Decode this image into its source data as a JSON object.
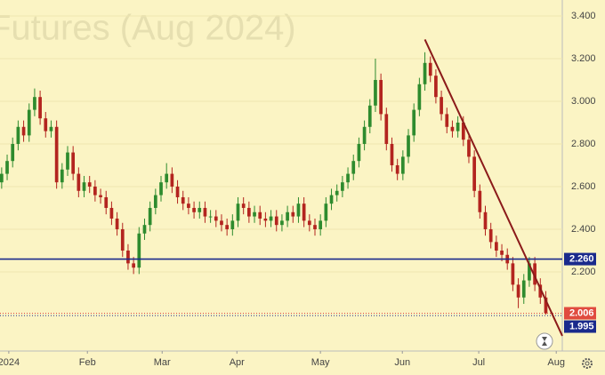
{
  "chart_data": {
    "type": "candlestick",
    "watermark": "Futures (Aug 2024)",
    "xlim": [
      -0.3,
      102
    ],
    "xticks": [
      {
        "value": 1.3,
        "label": "2024"
      },
      {
        "value": 15.6,
        "label": "Feb"
      },
      {
        "value": 29.2,
        "label": "Mar"
      },
      {
        "value": 42.8,
        "label": "Apr"
      },
      {
        "value": 58,
        "label": "May"
      },
      {
        "value": 72.9,
        "label": "Jun"
      },
      {
        "value": 86.8,
        "label": "Jul"
      },
      {
        "value": 100.9,
        "label": "Aug"
      }
    ],
    "ylim": [
      1.829,
      3.475
    ],
    "yticks": [
      {
        "value": 2.2,
        "label": "2.200"
      },
      {
        "value": 2.4,
        "label": "2.400"
      },
      {
        "value": 2.6,
        "label": "2.600"
      },
      {
        "value": 2.8,
        "label": "2.800"
      },
      {
        "value": 3.0,
        "label": "3.000"
      },
      {
        "value": 3.2,
        "label": "3.200"
      },
      {
        "value": 3.4,
        "label": "3.400"
      }
    ],
    "grid": true,
    "up_color": "#2e8b2e",
    "down_color": "#b3241f",
    "ohlc": [
      [
        2.62,
        2.69,
        2.59,
        2.66
      ],
      [
        2.66,
        2.75,
        2.63,
        2.72
      ],
      [
        2.72,
        2.83,
        2.69,
        2.8
      ],
      [
        2.8,
        2.91,
        2.77,
        2.88
      ],
      [
        2.88,
        2.91,
        2.81,
        2.84
      ],
      [
        2.84,
        2.99,
        2.81,
        2.96
      ],
      [
        2.96,
        3.06,
        2.93,
        3.02
      ],
      [
        3.02,
        3.05,
        2.89,
        2.92
      ],
      [
        2.92,
        2.95,
        2.83,
        2.86
      ],
      [
        2.86,
        2.91,
        2.83,
        2.88
      ],
      [
        2.88,
        2.91,
        2.59,
        2.62
      ],
      [
        2.62,
        2.71,
        2.59,
        2.68
      ],
      [
        2.68,
        2.79,
        2.65,
        2.76
      ],
      [
        2.76,
        2.79,
        2.63,
        2.66
      ],
      [
        2.66,
        2.69,
        2.55,
        2.58
      ],
      [
        2.58,
        2.65,
        2.55,
        2.62
      ],
      [
        2.62,
        2.65,
        2.57,
        2.6
      ],
      [
        2.6,
        2.63,
        2.53,
        2.56
      ],
      [
        2.56,
        2.59,
        2.52,
        2.55
      ],
      [
        2.55,
        2.58,
        2.47,
        2.5
      ],
      [
        2.5,
        2.53,
        2.42,
        2.45
      ],
      [
        2.45,
        2.48,
        2.37,
        2.4
      ],
      [
        2.4,
        2.43,
        2.27,
        2.3
      ],
      [
        2.3,
        2.33,
        2.21,
        2.24
      ],
      [
        2.24,
        2.27,
        2.19,
        2.22
      ],
      [
        2.22,
        2.41,
        2.19,
        2.38
      ],
      [
        2.38,
        2.45,
        2.35,
        2.42
      ],
      [
        2.42,
        2.53,
        2.39,
        2.5
      ],
      [
        2.5,
        2.59,
        2.47,
        2.56
      ],
      [
        2.56,
        2.65,
        2.53,
        2.62
      ],
      [
        2.62,
        2.71,
        2.59,
        2.66
      ],
      [
        2.66,
        2.69,
        2.57,
        2.6
      ],
      [
        2.6,
        2.63,
        2.52,
        2.55
      ],
      [
        2.55,
        2.58,
        2.49,
        2.52
      ],
      [
        2.52,
        2.55,
        2.47,
        2.5
      ],
      [
        2.5,
        2.53,
        2.45,
        2.48
      ],
      [
        2.48,
        2.53,
        2.45,
        2.5
      ],
      [
        2.5,
        2.53,
        2.43,
        2.46
      ],
      [
        2.46,
        2.49,
        2.43,
        2.46
      ],
      [
        2.46,
        2.49,
        2.41,
        2.44
      ],
      [
        2.44,
        2.47,
        2.39,
        2.42
      ],
      [
        2.42,
        2.45,
        2.37,
        2.4
      ],
      [
        2.4,
        2.47,
        2.37,
        2.44
      ],
      [
        2.44,
        2.55,
        2.41,
        2.52
      ],
      [
        2.52,
        2.55,
        2.47,
        2.5
      ],
      [
        2.5,
        2.53,
        2.43,
        2.46
      ],
      [
        2.46,
        2.51,
        2.43,
        2.48
      ],
      [
        2.48,
        2.51,
        2.42,
        2.45
      ],
      [
        2.45,
        2.48,
        2.41,
        2.44
      ],
      [
        2.44,
        2.49,
        2.41,
        2.46
      ],
      [
        2.46,
        2.49,
        2.39,
        2.42
      ],
      [
        2.42,
        2.47,
        2.39,
        2.44
      ],
      [
        2.44,
        2.51,
        2.41,
        2.48
      ],
      [
        2.48,
        2.51,
        2.43,
        2.46
      ],
      [
        2.46,
        2.55,
        2.43,
        2.52
      ],
      [
        2.52,
        2.55,
        2.41,
        2.44
      ],
      [
        2.44,
        2.47,
        2.39,
        2.42
      ],
      [
        2.42,
        2.45,
        2.37,
        2.4
      ],
      [
        2.4,
        2.47,
        2.37,
        2.44
      ],
      [
        2.44,
        2.55,
        2.41,
        2.52
      ],
      [
        2.52,
        2.59,
        2.49,
        2.56
      ],
      [
        2.56,
        2.61,
        2.53,
        2.58
      ],
      [
        2.58,
        2.65,
        2.55,
        2.62
      ],
      [
        2.62,
        2.69,
        2.59,
        2.66
      ],
      [
        2.66,
        2.75,
        2.63,
        2.72
      ],
      [
        2.72,
        2.83,
        2.69,
        2.8
      ],
      [
        2.8,
        2.91,
        2.77,
        2.88
      ],
      [
        2.88,
        3.01,
        2.85,
        2.98
      ],
      [
        2.98,
        3.2,
        2.95,
        3.1
      ],
      [
        3.1,
        3.13,
        2.91,
        2.94
      ],
      [
        2.94,
        2.97,
        2.77,
        2.8
      ],
      [
        2.8,
        2.83,
        2.67,
        2.7
      ],
      [
        2.7,
        2.73,
        2.63,
        2.66
      ],
      [
        2.66,
        2.77,
        2.63,
        2.74
      ],
      [
        2.74,
        2.87,
        2.71,
        2.84
      ],
      [
        2.84,
        2.99,
        2.81,
        2.96
      ],
      [
        2.96,
        3.11,
        2.93,
        3.08
      ],
      [
        3.08,
        3.23,
        3.05,
        3.18
      ],
      [
        3.18,
        3.21,
        3.09,
        3.12
      ],
      [
        3.12,
        3.15,
        2.99,
        3.02
      ],
      [
        3.02,
        3.05,
        2.91,
        2.94
      ],
      [
        2.94,
        2.97,
        2.85,
        2.88
      ],
      [
        2.88,
        2.91,
        2.83,
        2.86
      ],
      [
        2.86,
        2.93,
        2.83,
        2.9
      ],
      [
        2.9,
        2.93,
        2.79,
        2.82
      ],
      [
        2.82,
        2.85,
        2.71,
        2.74
      ],
      [
        2.74,
        2.77,
        2.55,
        2.58
      ],
      [
        2.58,
        2.61,
        2.45,
        2.48
      ],
      [
        2.48,
        2.51,
        2.37,
        2.4
      ],
      [
        2.4,
        2.43,
        2.31,
        2.34
      ],
      [
        2.34,
        2.37,
        2.27,
        2.3
      ],
      [
        2.3,
        2.33,
        2.25,
        2.28
      ],
      [
        2.28,
        2.31,
        2.21,
        2.24
      ],
      [
        2.24,
        2.27,
        2.11,
        2.14
      ],
      [
        2.14,
        2.17,
        2.03,
        2.08
      ],
      [
        2.08,
        2.19,
        2.05,
        2.16
      ],
      [
        2.16,
        2.27,
        2.13,
        2.24
      ],
      [
        2.24,
        2.27,
        2.11,
        2.14
      ],
      [
        2.14,
        2.17,
        2.05,
        2.08
      ],
      [
        2.08,
        2.11,
        2.0,
        2.006
      ]
    ],
    "levels": [
      {
        "value": 2.26,
        "label": "2.260",
        "color": "#1a2a8c",
        "style": "solid"
      },
      {
        "value": 2.006,
        "label": "2.006",
        "color": "#e04b3f",
        "style": "dotted"
      },
      {
        "value": 1.995,
        "label": "1.995",
        "color": "#1a2a8c",
        "style": "dotted"
      }
    ],
    "trendline": {
      "x": [
        77,
        102
      ],
      "y": [
        3.29,
        1.9
      ],
      "color": "#8b1a1a"
    }
  }
}
